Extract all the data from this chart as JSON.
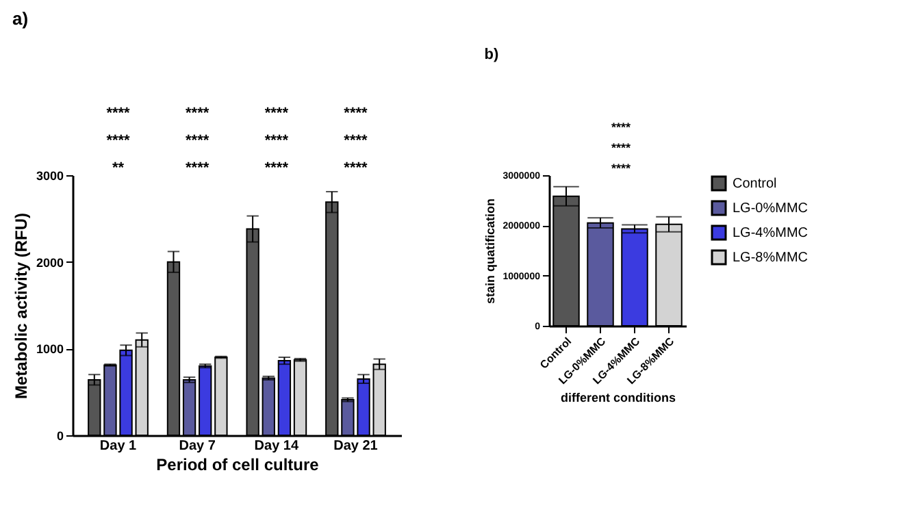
{
  "chart_data": [
    {
      "type": "bar",
      "title": "a)",
      "xlabel": "Period of cell culture",
      "ylabel": "Metabolic activity (RFU)",
      "categories": [
        "Day 1",
        "Day 7",
        "Day 14",
        "Day 21"
      ],
      "ylim": [
        0,
        3000
      ],
      "yticks": [
        0,
        1000,
        2000,
        3000
      ],
      "legend": false,
      "grid": false,
      "series": [
        {
          "color": "#555555",
          "values": [
            640,
            2000,
            2380,
            2690
          ],
          "errors": [
            60,
            120,
            150,
            120
          ]
        },
        {
          "color": "#5a5a9e",
          "values": [
            810,
            640,
            660,
            410
          ],
          "errors": [
            10,
            30,
            20,
            20
          ]
        },
        {
          "color": "#3b3be0",
          "values": [
            980,
            800,
            860,
            650
          ],
          "errors": [
            60,
            20,
            40,
            50
          ]
        },
        {
          "color": "#d3d3d3",
          "values": [
            1100,
            900,
            870,
            820
          ],
          "errors": [
            80,
            10,
            15,
            60
          ]
        }
      ],
      "annotations": [
        "**",
        "****",
        "****",
        "****",
        "****",
        "****",
        "****",
        "****",
        "****",
        "****",
        "****",
        "****"
      ]
    },
    {
      "type": "bar",
      "title": "b)",
      "xlabel": "different conditions",
      "ylabel": "stain quatification",
      "categories": [
        "Control",
        "LG-0%MMC",
        "LG-4%MMC",
        "LG-8%MMC"
      ],
      "stacked": true,
      "ylim": [
        0,
        3000000
      ],
      "yticks": [
        0,
        1000000,
        2000000,
        3000000
      ],
      "legend": "right",
      "grid": false,
      "series": [
        {
          "name": "Control",
          "color": "#555555",
          "values": [
            2580000,
            null,
            null,
            null
          ],
          "errors": [
            190000,
            null,
            null,
            null
          ]
        },
        {
          "name": "LG-0%MMC",
          "color": "#5a5a9e",
          "values": [
            null,
            2050000,
            null,
            null
          ],
          "errors": [
            null,
            100000,
            null,
            null
          ]
        },
        {
          "name": "LG-4%MMC",
          "color": "#3b3be0",
          "values": [
            null,
            null,
            1930000,
            null
          ],
          "errors": [
            null,
            null,
            80000,
            null
          ]
        },
        {
          "name": "LG-8%MMC",
          "color": "#d3d3d3",
          "values": [
            null,
            null,
            null,
            2020000
          ],
          "errors": [
            null,
            null,
            null,
            150000
          ]
        }
      ],
      "annotations": [
        "****",
        "****",
        "****"
      ]
    }
  ]
}
